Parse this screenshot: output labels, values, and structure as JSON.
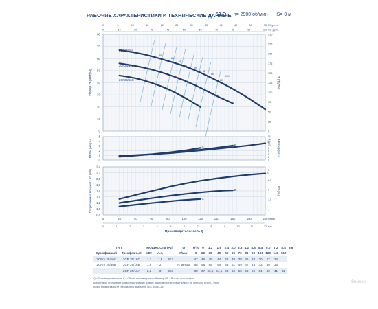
{
  "header": {
    "title": "РАБОЧИЕ ХАРАКТЕРИСТИКИ И ТЕХНИЧЕСКИЕ ДАННЫЕ",
    "freq": "50 Гц",
    "speed": "n= 2900 об/мин",
    "hs": "HS= 0 м"
  },
  "watermark": "Вимкор",
  "colors": {
    "curve": "#1f3d6b",
    "iso": "#7fb3d5",
    "grid": "#c7d2e0",
    "panel_bg": "#f4f6f9"
  },
  "chart_data": [
    {
      "type": "line",
      "name": "head-curves",
      "ylabel": "Напор H (метры)",
      "ylabel_right": "H (футы)",
      "xlim": [
        0,
        200
      ],
      "ylim": [
        0,
        80
      ],
      "yticks": [
        0,
        10,
        20,
        30,
        40,
        50,
        60,
        70,
        80
      ],
      "y2ticks": [
        0,
        25,
        50,
        75,
        100,
        125,
        150,
        175,
        200,
        225,
        250
      ],
      "top_axis_1": [
        "0",
        "5",
        "10",
        "15",
        "20",
        "25",
        "30",
        "35",
        "40",
        "45",
        "50",
        "55"
      ],
      "top_axis_2": [
        "0",
        "10",
        "20",
        "30",
        "40",
        "50",
        "60",
        "70",
        "80",
        "90",
        "100"
      ],
      "top_axis_3": [
        "0",
        "1",
        "2",
        "3",
        "4",
        "5",
        "6",
        "7",
        "8",
        "9",
        "10",
        "11",
        "12"
      ],
      "top_unit_1": "US g.p.m.",
      "top_unit_2": "Imp g.p.m.",
      "top_unit_3": "м³/ч",
      "series": [
        {
          "name": "2CP25/16A",
          "x": [
            20,
            40,
            60,
            80,
            100,
            120,
            140,
            160,
            180,
            200
          ],
          "y": [
            67,
            65,
            62,
            58,
            54,
            48.5,
            42,
            35,
            27,
            18
          ]
        },
        {
          "name": "2CP25/16B",
          "x": [
            20,
            40,
            60,
            80,
            100,
            120,
            140,
            160
          ],
          "y": [
            56,
            54,
            51,
            47,
            42,
            36,
            29,
            23
          ]
        },
        {
          "name": "2CP25/16C",
          "x": [
            20,
            40,
            60,
            80,
            100,
            120
          ],
          "y": [
            46,
            44,
            40,
            35,
            28,
            20
          ]
        }
      ],
      "efficiency_labels": [
        "50",
        "60",
        "65",
        "68",
        "69",
        "68",
        "65",
        "60",
        "64%"
      ]
    },
    {
      "type": "line",
      "name": "npsh-curves",
      "ylabel": "NPSH (метры)",
      "ylabel_right": "NPSH (футы)",
      "ylim": [
        0,
        5
      ],
      "yticks": [
        0,
        1,
        2,
        3,
        4,
        5
      ],
      "y2ticks": [
        0,
        2,
        4,
        6,
        8,
        10,
        12,
        14,
        16
      ],
      "series": [
        {
          "name": "A",
          "x": [
            20,
            60,
            100,
            140,
            180,
            200
          ],
          "y": [
            0.9,
            1.2,
            1.7,
            2.4,
            3.1,
            3.6
          ]
        },
        {
          "name": "B",
          "x": [
            20,
            60,
            100,
            140,
            160
          ],
          "y": [
            0.8,
            1.2,
            1.8,
            2.6,
            3.1
          ]
        },
        {
          "name": "C",
          "x": [
            20,
            60,
            100,
            120
          ],
          "y": [
            0.7,
            1.2,
            2.0,
            2.6
          ]
        }
      ]
    },
    {
      "type": "line",
      "name": "power-curves",
      "ylabel": "Потребляемая мощность P2 (кВт)",
      "ylabel_right": "P2 (лс)",
      "xlabel": "Производительность Q",
      "ylim": [
        0.8,
        2.4
      ],
      "yticks": [
        "0,8",
        "1,0",
        "1,2",
        "1,4",
        "1,6",
        "1,8",
        "2,0",
        "2,2",
        "2,4"
      ],
      "y2ticks": [
        "1",
        "1,5",
        "2",
        "2,5",
        "3"
      ],
      "xticks": [
        "0",
        "20",
        "40",
        "60",
        "80",
        "100",
        "120",
        "140",
        "160",
        "180",
        "200"
      ],
      "xunit": "л/мин",
      "bottom_axis_2": [
        "0",
        "1",
        "2",
        "3",
        "4",
        "5",
        "6",
        "7",
        "8",
        "9",
        "10",
        "11",
        "12"
      ],
      "bottom_unit_2": "м³/ч",
      "series": [
        {
          "name": "A",
          "x": [
            20,
            60,
            100,
            140,
            180,
            200
          ],
          "y": [
            1.33,
            1.6,
            1.85,
            2.02,
            2.14,
            2.18
          ]
        },
        {
          "name": "B",
          "x": [
            20,
            60,
            100,
            140,
            160
          ],
          "y": [
            1.2,
            1.36,
            1.5,
            1.6,
            1.62
          ]
        },
        {
          "name": "C",
          "x": [
            20,
            60,
            100,
            120
          ],
          "y": [
            1.08,
            1.2,
            1.3,
            1.33
          ]
        }
      ]
    }
  ],
  "table": {
    "head1": [
      "ТИП",
      "МОЩНОСТЬ (P2)",
      "Q",
      "м³/ч",
      "0",
      "1,2",
      "1,8",
      "2,4",
      "3,0",
      "3,6",
      "4,2",
      "4,8",
      "5,4",
      "6,0",
      "7,2",
      "8,4",
      "9,6"
    ],
    "head2": [
      "Однофазный",
      "Трехфазный",
      "кВт",
      "л.с.",
      "",
      "л/мин",
      "0",
      "20",
      "30",
      "40",
      "50",
      "60",
      "70",
      "80",
      "90",
      "100",
      "120",
      "140",
      "160"
    ],
    "rows": [
      [
        "2CPm 25/16C",
        "2CP 25/16C",
        "1,1",
        "1,5",
        "IE2",
        "",
        "47",
        "46",
        "45",
        "44",
        "42",
        "40",
        "38",
        "35",
        "32",
        "30",
        "27",
        "24",
        ""
      ],
      [
        "2CPm 25/16B",
        "2CP 25/16B",
        "1,5",
        "2",
        "",
        "H метры",
        "58",
        "56",
        "55",
        "54",
        "53",
        "51",
        "49",
        "47",
        "45",
        "43",
        "40",
        "36",
        ""
      ],
      [
        "–",
        "2CP 25/16A",
        "2,2",
        "3",
        "IE3",
        "",
        "68",
        "67",
        "65,5",
        "64,5",
        "63",
        "62",
        "60",
        "58",
        "56",
        "54",
        "49",
        "41",
        "32"
      ]
    ]
  },
  "notes": [
    "Q = Производительность   H = Общий манометрический напор   HS = Высота всасывания",
    "Допустимое отклонение характеристических кривых насосов соответствует классу 3В согласно EN ISO 9906.",
    "Класс эффективности трехфазного двигателя (IEC 60034-30)"
  ]
}
